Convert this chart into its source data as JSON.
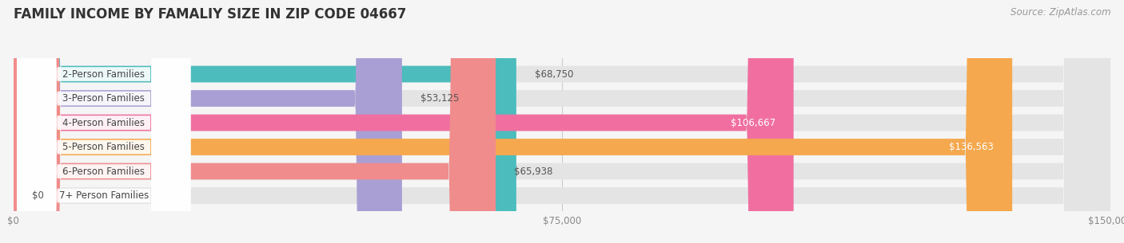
{
  "title": "FAMILY INCOME BY FAMALIY SIZE IN ZIP CODE 04667",
  "source": "Source: ZipAtlas.com",
  "categories": [
    "2-Person Families",
    "3-Person Families",
    "4-Person Families",
    "5-Person Families",
    "6-Person Families",
    "7+ Person Families"
  ],
  "values": [
    68750,
    53125,
    106667,
    136563,
    65938,
    0
  ],
  "bar_colors": [
    "#4cbcbc",
    "#a99fd4",
    "#f06fa0",
    "#f5a84e",
    "#f08c8c",
    "#a0c8f0"
  ],
  "xmax": 150000,
  "xticks": [
    0,
    75000,
    150000
  ],
  "xtick_labels": [
    "$0",
    "$75,000",
    "$150,000"
  ],
  "background_color": "#f5f5f5",
  "bar_bg_color": "#e4e4e4",
  "title_fontsize": 12,
  "label_fontsize": 8.5,
  "value_fontsize": 8.5,
  "source_fontsize": 8.5
}
